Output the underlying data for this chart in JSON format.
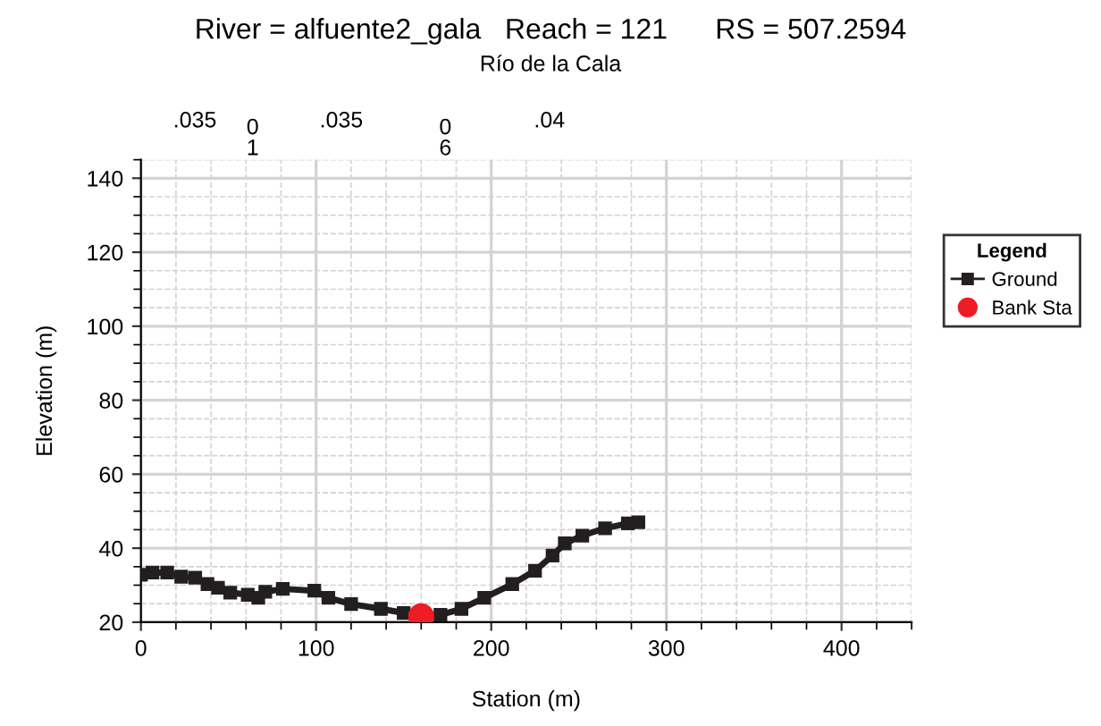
{
  "chart_data": {
    "type": "line",
    "title": "River = alfuente2_gala   Reach = 121      RS = 507.2594",
    "subtitle": "Río de la Cala",
    "xlabel": "Station (m)",
    "ylabel": "Elevation (m)",
    "legend_title": "Legend",
    "series": [
      {
        "name": "Ground",
        "color": "#231f20",
        "marker": "square",
        "x": [
          0,
          6.6,
          15,
          23,
          31,
          38,
          44,
          51,
          61,
          67,
          71,
          81,
          99,
          107,
          120,
          137,
          150,
          161,
          171,
          183,
          196,
          212,
          225,
          235,
          242,
          252,
          265,
          278,
          284
        ],
        "values": [
          32.8,
          33.4,
          33.4,
          32.3,
          32,
          30.3,
          29.3,
          28,
          27.4,
          26.6,
          28.2,
          29,
          28.5,
          26.6,
          24.9,
          23.6,
          22.5,
          21.6,
          22,
          23.6,
          26.6,
          30.3,
          33.9,
          38,
          41.3,
          43.4,
          45.4,
          46.7,
          47
        ]
      },
      {
        "name": "Bank Sta",
        "type": "scatter",
        "color": "#ee1c25",
        "marker": "circle",
        "x": [
          160
        ],
        "values": [
          21.6
        ]
      }
    ],
    "annotations": [
      ".035",
      "0\n1",
      ".035",
      "0\n6",
      ".04"
    ],
    "xlim": [
      0,
      440
    ],
    "xticks": [
      0,
      100,
      200,
      300,
      400
    ],
    "ylim": [
      20,
      145
    ],
    "yticks": [
      20,
      40,
      60,
      80,
      100,
      120,
      140
    ],
    "grid": true,
    "legend": "right"
  }
}
